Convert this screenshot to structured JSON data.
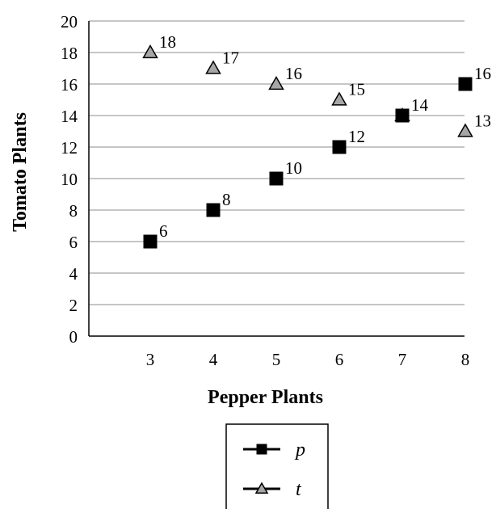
{
  "chart_data": {
    "type": "scatter",
    "xlabel": "Pepper Plants",
    "ylabel": "Tomato Plants",
    "xlim": [
      2,
      8
    ],
    "ylim": [
      0,
      20
    ],
    "x_ticks": [
      3,
      4,
      5,
      6,
      7,
      8
    ],
    "y_ticks": [
      0,
      2,
      4,
      6,
      8,
      10,
      12,
      14,
      16,
      18,
      20
    ],
    "grid": "horizontal",
    "legend_position": "bottom",
    "series": [
      {
        "name": "p",
        "marker": "square",
        "color": "#000000",
        "x": [
          3,
          4,
          5,
          6,
          7,
          8
        ],
        "y": [
          6,
          8,
          10,
          12,
          14,
          16
        ],
        "labels": [
          "6",
          "8",
          "10",
          "12",
          "",
          "16"
        ]
      },
      {
        "name": "t",
        "marker": "triangle",
        "color": "#a6a6a6",
        "x": [
          3,
          4,
          5,
          6,
          7,
          8
        ],
        "y": [
          18,
          17,
          16,
          15,
          14,
          13
        ],
        "labels": [
          "18",
          "17",
          "16",
          "15",
          "14",
          "13"
        ]
      }
    ]
  }
}
